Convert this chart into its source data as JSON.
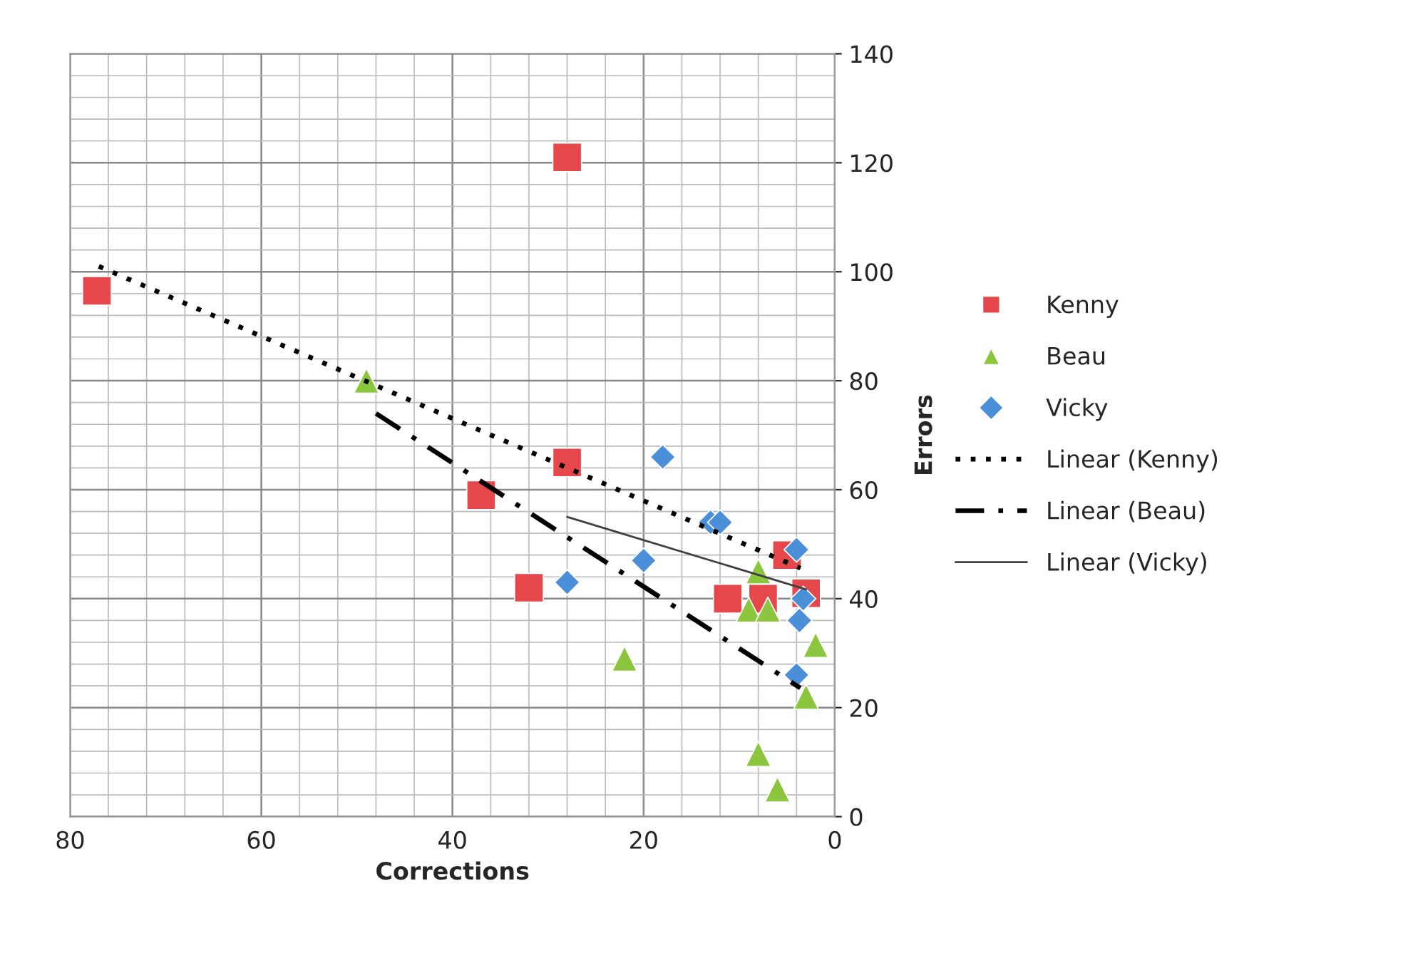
{
  "chart_data": {
    "type": "scatter",
    "xlabel": "Corrections",
    "ylabel": "Errors",
    "xlim": [
      80,
      0
    ],
    "xticks": [
      80,
      60,
      40,
      20,
      0
    ],
    "ylim": [
      0,
      140
    ],
    "yticks": [
      0,
      20,
      40,
      60,
      80,
      100,
      120,
      140
    ],
    "grid": true,
    "legend": "right",
    "series": [
      {
        "name": "Kenny",
        "color": "#e5474b",
        "marker": "square",
        "x": [
          77.2,
          28,
          28,
          37,
          32,
          11.2,
          5,
          3,
          7.5
        ],
        "values": [
          96.5,
          121,
          65,
          59,
          42,
          40,
          48,
          41,
          40
        ]
      },
      {
        "name": "Beau",
        "color": "#8cc63f",
        "marker": "triangle",
        "x": [
          49,
          22,
          8,
          9,
          7,
          2,
          3,
          8,
          6
        ],
        "values": [
          80,
          29,
          45,
          38,
          38,
          31.5,
          22,
          11.5,
          5
        ]
      },
      {
        "name": "Vicky",
        "color": "#4a8fd8",
        "marker": "diamond",
        "x": [
          18,
          13,
          12,
          20,
          28,
          4,
          3.3,
          3.7,
          4
        ],
        "values": [
          66,
          54,
          54,
          47,
          43,
          49,
          40,
          36,
          26
        ]
      },
      {
        "name": "Linear (Kenny)",
        "type": "line",
        "color": "#000000",
        "line_style": "dotted",
        "x": [
          77,
          3.6
        ],
        "values": [
          101,
          45.6
        ]
      },
      {
        "name": "Linear (Beau)",
        "type": "line",
        "color": "#000000",
        "line_style": "dashed",
        "x": [
          48,
          3.6
        ],
        "values": [
          74,
          23.6
        ]
      },
      {
        "name": "Linear (Vicky)",
        "type": "line",
        "color": "#404040",
        "line_style": "solid",
        "x": [
          28,
          3
        ],
        "values": [
          55,
          41.7
        ]
      }
    ]
  }
}
